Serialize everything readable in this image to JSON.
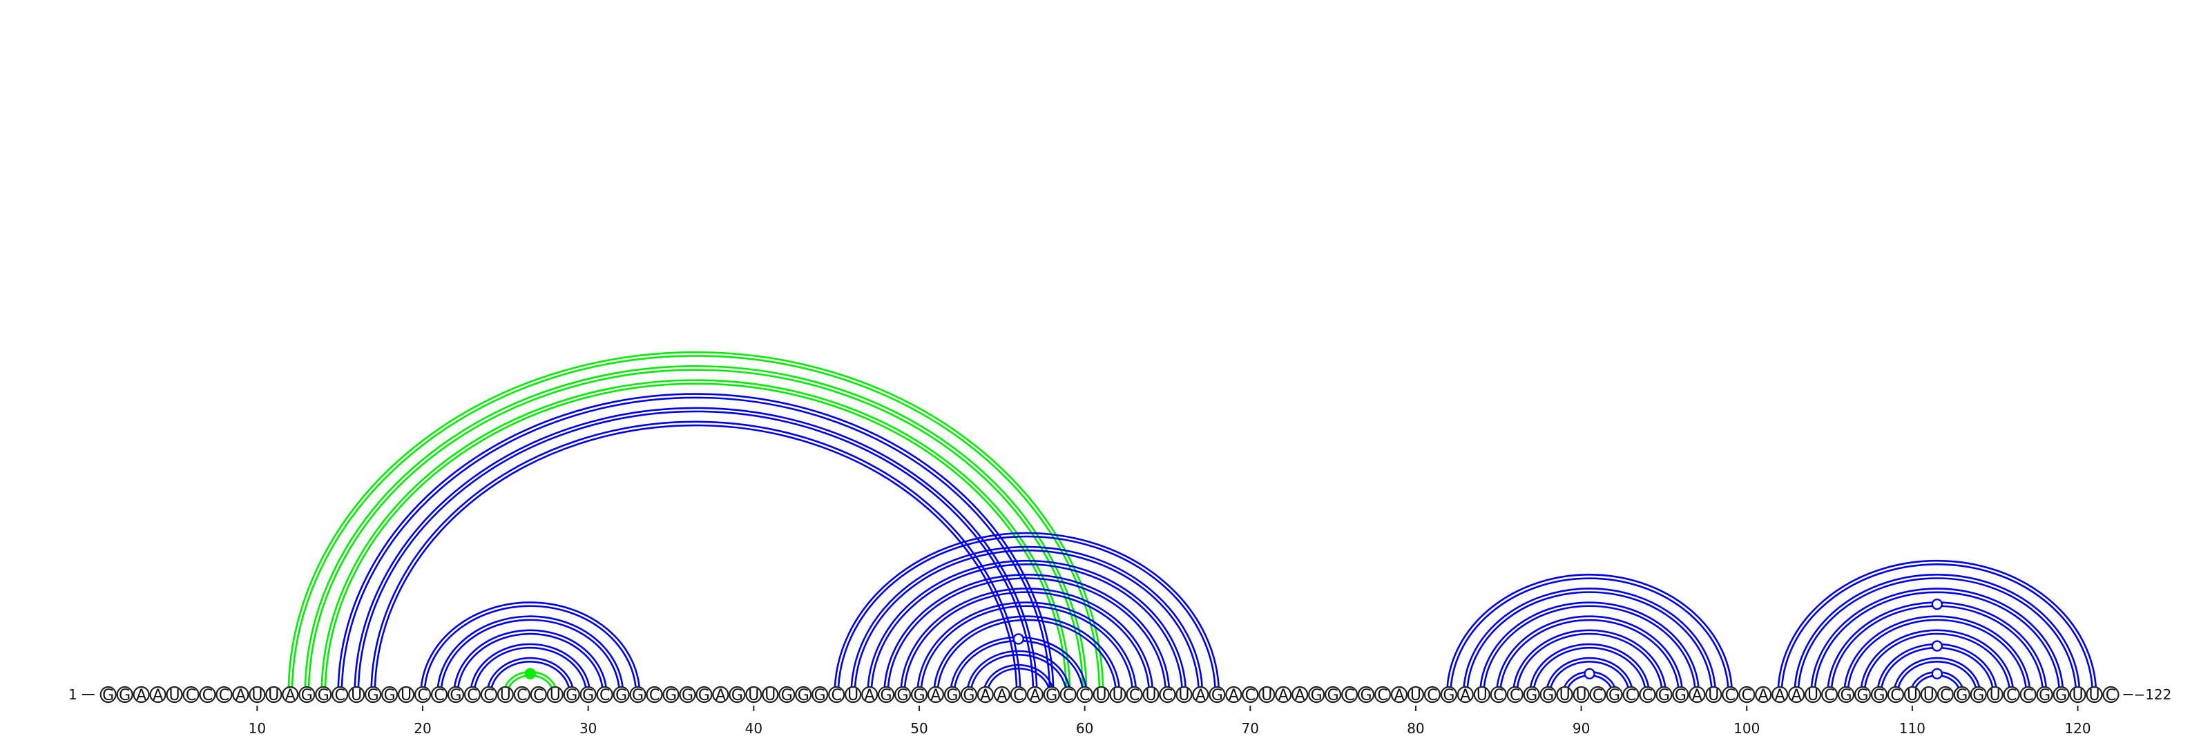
{
  "sequence": "GGAAUCCCAUUAGGCUGGUCCGCCUCCUGGCGGCGGGAGUUGGGCUAGGGAGGAACAGCCUUCUCUAGACUAAGGCGCAUCGAUCCGGUUCGCCGGAUCCAAAUCGGGCUUCGGUCCGGUUC",
  "start_label": "1",
  "end_label": "122",
  "tick_positions": [
    10,
    20,
    30,
    40,
    50,
    60,
    70,
    80,
    90,
    100,
    110,
    120
  ],
  "tick_labels": [
    "10",
    "20",
    "30",
    "40",
    "50",
    "60",
    "70",
    "80",
    "90",
    "100",
    "110",
    "120"
  ],
  "colors": {
    "blue": "#0000ee",
    "green": "#00ee00"
  },
  "arcs": [
    {
      "i": 12,
      "j": 61,
      "color": "green"
    },
    {
      "i": 13,
      "j": 60,
      "color": "green"
    },
    {
      "i": 14,
      "j": 59,
      "color": "green"
    },
    {
      "i": 15,
      "j": 58,
      "color": "blue"
    },
    {
      "i": 16,
      "j": 57,
      "color": "blue"
    },
    {
      "i": 17,
      "j": 56,
      "color": "blue"
    },
    {
      "i": 20,
      "j": 33,
      "color": "blue"
    },
    {
      "i": 21,
      "j": 32,
      "color": "blue"
    },
    {
      "i": 22,
      "j": 31,
      "color": "blue"
    },
    {
      "i": 23,
      "j": 30,
      "color": "blue"
    },
    {
      "i": 24,
      "j": 29,
      "color": "blue"
    },
    {
      "i": 25,
      "j": 28,
      "color": "green"
    },
    {
      "i": 45,
      "j": 68,
      "color": "blue"
    },
    {
      "i": 46,
      "j": 67,
      "color": "blue"
    },
    {
      "i": 47,
      "j": 66,
      "color": "blue"
    },
    {
      "i": 48,
      "j": 65,
      "color": "blue"
    },
    {
      "i": 49,
      "j": 64,
      "color": "blue"
    },
    {
      "i": 50,
      "j": 63,
      "color": "blue"
    },
    {
      "i": 51,
      "j": 62,
      "color": "blue"
    },
    {
      "i": 52,
      "j": 60,
      "color": "blue"
    },
    {
      "i": 53,
      "j": 59,
      "color": "blue"
    },
    {
      "i": 54,
      "j": 58,
      "color": "blue"
    },
    {
      "i": 82,
      "j": 99,
      "color": "blue"
    },
    {
      "i": 83,
      "j": 98,
      "color": "blue"
    },
    {
      "i": 84,
      "j": 97,
      "color": "blue"
    },
    {
      "i": 85,
      "j": 96,
      "color": "blue"
    },
    {
      "i": 86,
      "j": 95,
      "color": "blue"
    },
    {
      "i": 87,
      "j": 94,
      "color": "blue"
    },
    {
      "i": 88,
      "j": 93,
      "color": "blue"
    },
    {
      "i": 89,
      "j": 92,
      "color": "blue"
    },
    {
      "i": 102,
      "j": 121,
      "color": "blue"
    },
    {
      "i": 103,
      "j": 120,
      "color": "blue"
    },
    {
      "i": 104,
      "j": 119,
      "color": "blue"
    },
    {
      "i": 105,
      "j": 118,
      "color": "blue"
    },
    {
      "i": 106,
      "j": 117,
      "color": "blue"
    },
    {
      "i": 107,
      "j": 116,
      "color": "blue"
    },
    {
      "i": 108,
      "j": 115,
      "color": "blue"
    },
    {
      "i": 109,
      "j": 114,
      "color": "blue"
    },
    {
      "i": 110,
      "j": 113,
      "color": "blue"
    }
  ],
  "markers": [
    {
      "i": 25,
      "j": 28,
      "color": "green",
      "filled": true
    },
    {
      "i": 52,
      "j": 60,
      "color": "blue",
      "filled": false
    },
    {
      "i": 89,
      "j": 92,
      "color": "blue",
      "filled": false
    },
    {
      "i": 110,
      "j": 113,
      "color": "blue",
      "filled": false
    },
    {
      "i": 108,
      "j": 115,
      "color": "blue",
      "filled": false
    },
    {
      "i": 105,
      "j": 118,
      "color": "blue",
      "filled": false
    }
  ]
}
